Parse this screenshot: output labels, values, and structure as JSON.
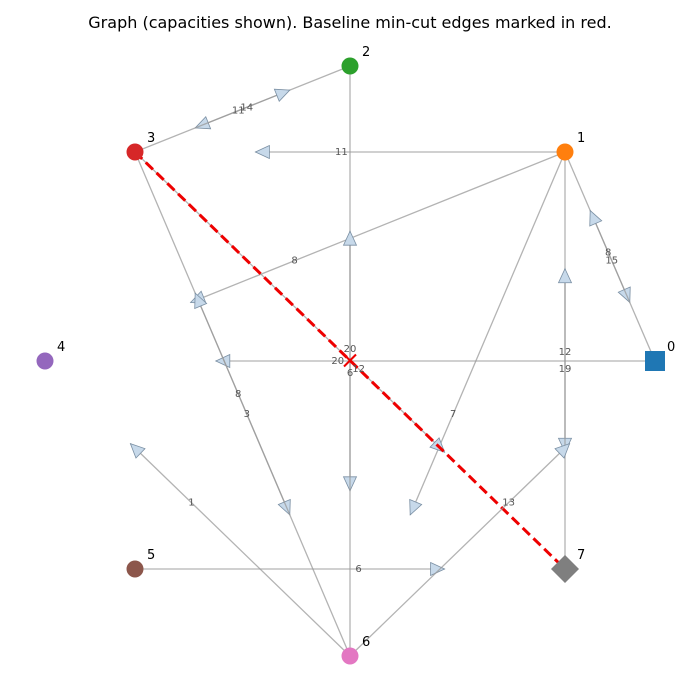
{
  "title": "Graph (capacities shown). Baseline min-cut edges marked in red.",
  "colors": {
    "edge": "#9a9a9a",
    "arrow_fill": "#c7d9ea",
    "cut": "#ee0000"
  },
  "nodes": [
    {
      "id": "0",
      "label": "0",
      "shape": "square",
      "color": "#1f77b4"
    },
    {
      "id": "1",
      "label": "1",
      "shape": "circle",
      "color": "#ff7f0e"
    },
    {
      "id": "2",
      "label": "2",
      "shape": "circle",
      "color": "#2ca02c"
    },
    {
      "id": "3",
      "label": "3",
      "shape": "circle",
      "color": "#d62728"
    },
    {
      "id": "4",
      "label": "4",
      "shape": "circle",
      "color": "#9467bd"
    },
    {
      "id": "5",
      "label": "5",
      "shape": "circle",
      "color": "#8c564b"
    },
    {
      "id": "6",
      "label": "6",
      "shape": "circle",
      "color": "#e377c2"
    },
    {
      "id": "7",
      "label": "7",
      "shape": "diamond",
      "color": "#7f7f7f"
    }
  ],
  "edges": [
    {
      "from": "1",
      "to": "3",
      "capacity": "11"
    },
    {
      "from": "1",
      "to": "0",
      "capacity": "15"
    },
    {
      "from": "1",
      "to": "7",
      "capacity": "19"
    },
    {
      "from": "1",
      "to": "4",
      "capacity": "8"
    },
    {
      "from": "1",
      "to": "6",
      "capacity": "7"
    },
    {
      "from": "0",
      "to": "4",
      "capacity": "20"
    },
    {
      "from": "0",
      "to": "1",
      "capacity": "8"
    },
    {
      "from": "2",
      "to": "3",
      "capacity": "11"
    },
    {
      "from": "3",
      "to": "2",
      "capacity": "14"
    },
    {
      "from": "2",
      "to": "6",
      "capacity": "6"
    },
    {
      "from": "6",
      "to": "2",
      "capacity": "20"
    },
    {
      "from": "3",
      "to": "6",
      "capacity": "3"
    },
    {
      "from": "6",
      "to": "3",
      "capacity": "8"
    },
    {
      "from": "3",
      "to": "7",
      "capacity": "12",
      "cut": true
    },
    {
      "from": "7",
      "to": "1",
      "capacity": "12"
    },
    {
      "from": "5",
      "to": "7",
      "capacity": "6"
    },
    {
      "from": "6",
      "to": "4",
      "capacity": "1"
    },
    {
      "from": "6",
      "to": "0",
      "capacity": "13"
    }
  ]
}
